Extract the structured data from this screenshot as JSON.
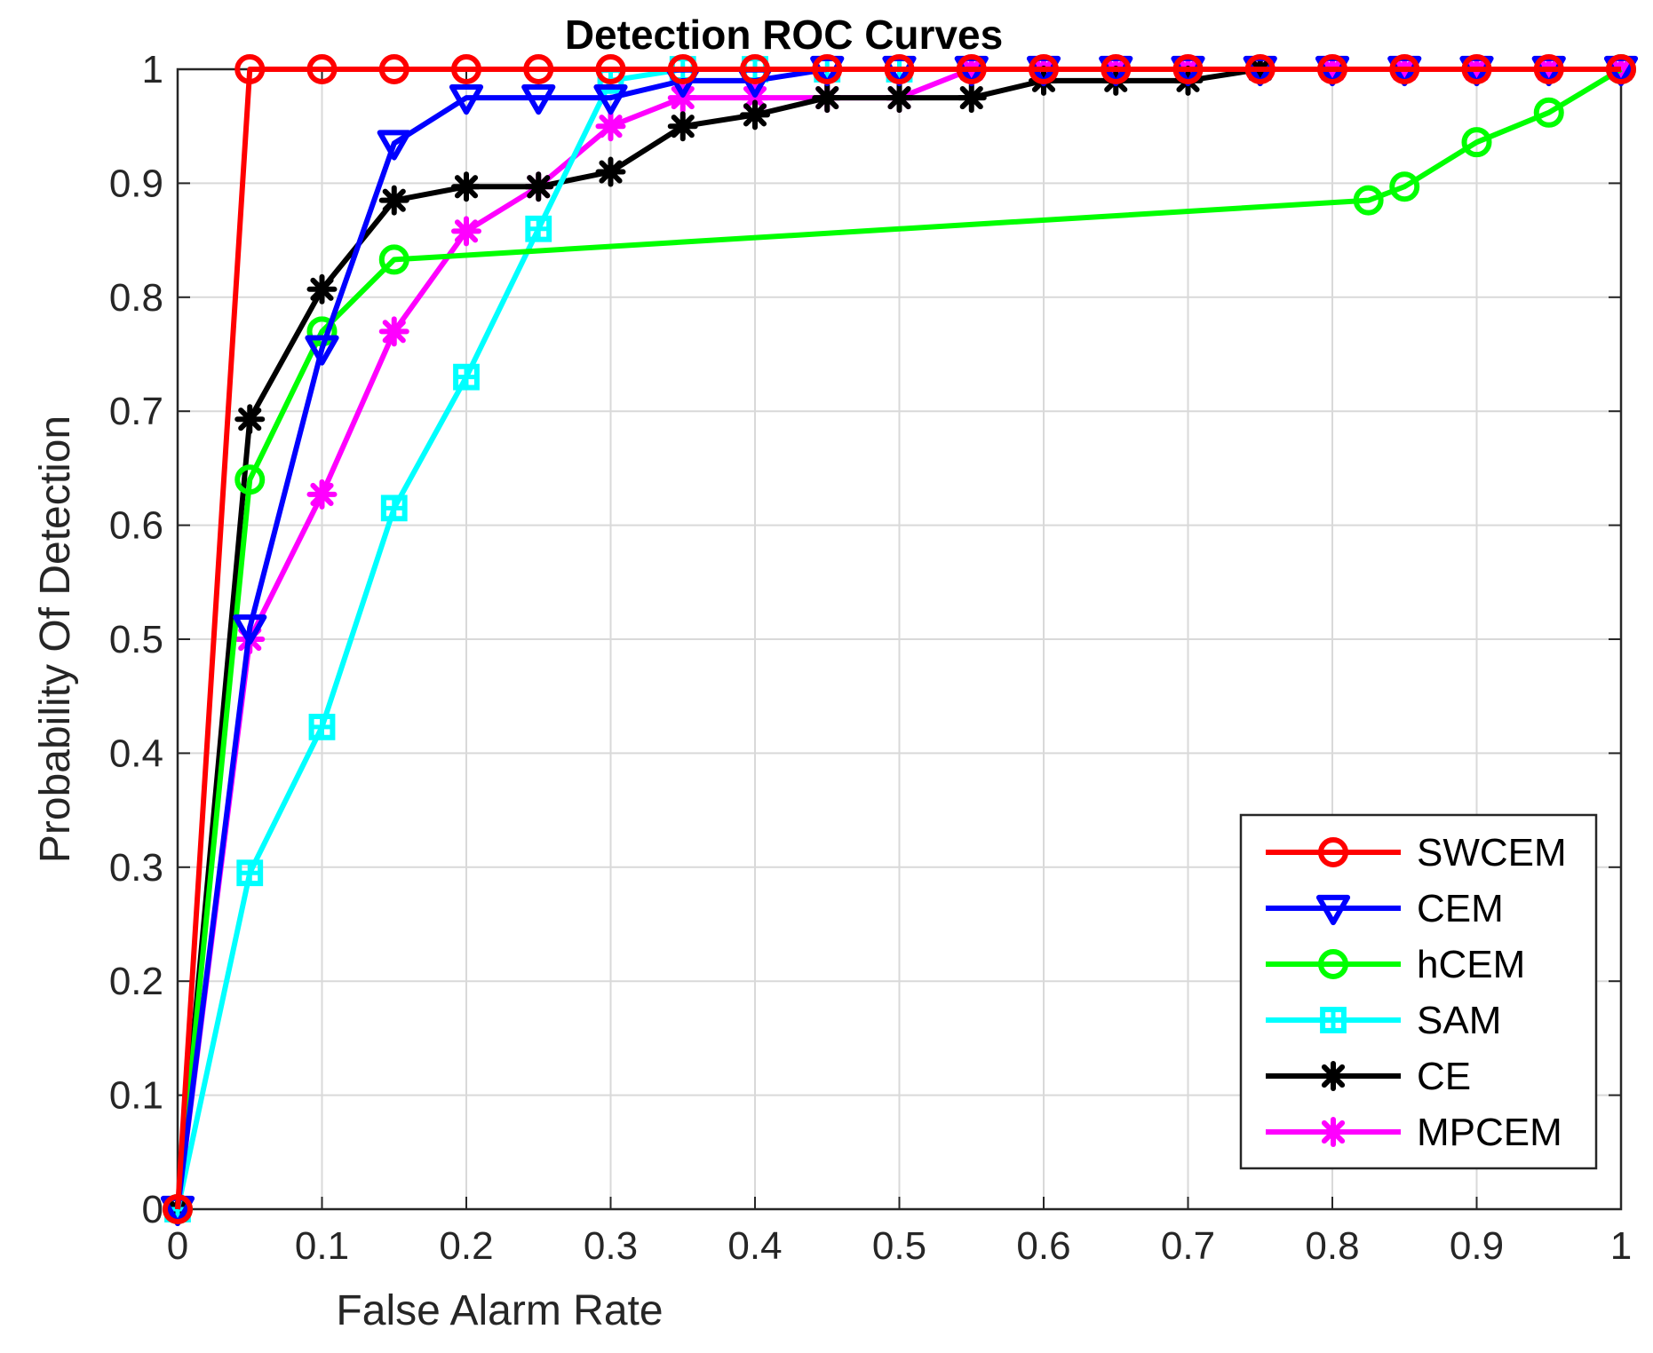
{
  "chart_data": {
    "type": "line",
    "title": "Detection ROC Curves",
    "xlabel": "False Alarm Rate",
    "ylabel": "Probability Of Detection",
    "xlim": [
      0,
      1
    ],
    "ylim": [
      0,
      1
    ],
    "x_ticks": [
      "0",
      "0.1",
      "0.2",
      "0.3",
      "0.4",
      "0.5",
      "0.6",
      "0.7",
      "0.8",
      "0.9",
      "1"
    ],
    "y_ticks": [
      "0",
      "0.1",
      "0.2",
      "0.3",
      "0.4",
      "0.5",
      "0.6",
      "0.7",
      "0.8",
      "0.9",
      "1"
    ],
    "grid": true,
    "legend_position": "bottom-right",
    "series": [
      {
        "name": "SWCEM",
        "color": "#ff0000",
        "marker": "circle",
        "x": [
          0,
          0.05,
          0.1,
          0.15,
          0.2,
          0.25,
          0.3,
          0.35,
          0.4,
          0.45,
          0.5,
          0.55,
          0.6,
          0.65,
          0.7,
          0.75,
          0.8,
          0.85,
          0.9,
          0.95,
          1
        ],
        "y": [
          0,
          1,
          1,
          1,
          1,
          1,
          1,
          1,
          1,
          1,
          1,
          1,
          1,
          1,
          1,
          1,
          1,
          1,
          1,
          1,
          1
        ]
      },
      {
        "name": "CEM",
        "color": "#0000ff",
        "marker": "triangle-down",
        "x": [
          0,
          0.05,
          0.1,
          0.15,
          0.2,
          0.25,
          0.3,
          0.35,
          0.4,
          0.45,
          0.5,
          0.55,
          0.6,
          0.65,
          0.7,
          0.75,
          0.8,
          0.85,
          0.9,
          0.95,
          1
        ],
        "y": [
          0,
          0.51,
          0.755,
          0.935,
          0.975,
          0.975,
          0.975,
          0.99,
          0.99,
          1,
          1,
          1,
          1,
          1,
          1,
          1,
          1,
          1,
          1,
          1,
          1
        ]
      },
      {
        "name": "hCEM",
        "color": "#00ff00",
        "marker": "circle",
        "x": [
          0,
          0.05,
          0.1,
          0.15,
          0.825,
          0.85,
          0.9,
          0.95,
          1
        ],
        "y": [
          0,
          0.64,
          0.77,
          0.833,
          0.885,
          0.897,
          0.936,
          0.962,
          1
        ]
      },
      {
        "name": "SAM",
        "color": "#00ffff",
        "marker": "square",
        "x": [
          0,
          0.05,
          0.1,
          0.15,
          0.2,
          0.25,
          0.3,
          0.35,
          0.4,
          0.45,
          0.5
        ],
        "y": [
          0,
          0.295,
          0.423,
          0.615,
          0.73,
          0.86,
          0.99,
          1,
          1,
          1,
          1
        ]
      },
      {
        "name": "CE",
        "color": "#000000",
        "marker": "asterisk",
        "x": [
          0,
          0.05,
          0.1,
          0.15,
          0.2,
          0.25,
          0.3,
          0.35,
          0.4,
          0.45,
          0.5,
          0.55,
          0.6,
          0.65,
          0.7,
          0.75
        ],
        "y": [
          0,
          0.693,
          0.807,
          0.885,
          0.897,
          0.897,
          0.91,
          0.95,
          0.96,
          0.975,
          0.975,
          0.975,
          0.99,
          0.99,
          0.99,
          1
        ]
      },
      {
        "name": "MPCEM",
        "color": "#ff00ff",
        "marker": "asterisk",
        "x": [
          0,
          0.05,
          0.1,
          0.15,
          0.2,
          0.25,
          0.3,
          0.35,
          0.4,
          0.45,
          0.5,
          0.55,
          0.6,
          0.65,
          0.7,
          0.75,
          0.8,
          0.85,
          0.9,
          0.95,
          1
        ],
        "y": [
          0,
          0.5,
          0.627,
          0.77,
          0.858,
          0.897,
          0.95,
          0.975,
          0.975,
          0.975,
          0.975,
          1,
          1,
          1,
          1,
          1,
          1,
          1,
          1,
          1,
          1
        ]
      }
    ]
  }
}
